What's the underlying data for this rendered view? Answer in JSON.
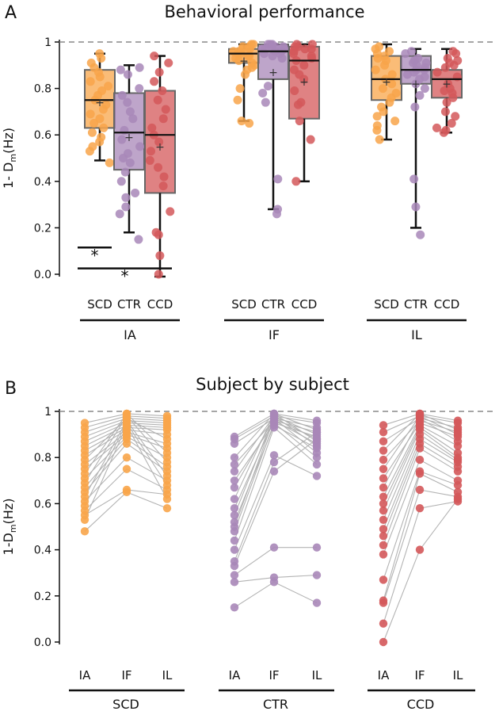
{
  "colors": {
    "SCD": "#F8A54A",
    "CTR": "#A887B8",
    "CCD": "#D4585A",
    "line": "#b3b3b3",
    "ref": "#888888"
  },
  "chart_data": [
    {
      "type": "box",
      "panel_label": "A",
      "title": "Behavioral performance",
      "ylabel": "1- D",
      "ylabel_sub": "m",
      "ylabel_unit": "(Hz)",
      "ylim": [
        0,
        1
      ],
      "yticks": [
        "0.0",
        "0.2",
        "0.4",
        "0.6",
        "0.8",
        "1"
      ],
      "reference_line": 1,
      "group_labels": [
        "IA",
        "IF",
        "IL"
      ],
      "condition_labels": [
        "SCD",
        "CTR",
        "CCD"
      ],
      "boxes": [
        {
          "group": "IA",
          "cond": "SCD",
          "min": 0.49,
          "q1": 0.63,
          "median": 0.75,
          "q3": 0.88,
          "max": 0.95,
          "mean": 0.74
        },
        {
          "group": "IA",
          "cond": "CTR",
          "min": 0.18,
          "q1": 0.45,
          "median": 0.61,
          "q3": 0.78,
          "max": 0.9,
          "mean": 0.59
        },
        {
          "group": "IA",
          "cond": "CCD",
          "min": -0.01,
          "q1": 0.35,
          "median": 0.6,
          "q3": 0.79,
          "max": 0.94,
          "mean": 0.55
        },
        {
          "group": "IF",
          "cond": "SCD",
          "min": 0.66,
          "q1": 0.91,
          "median": 0.95,
          "q3": 0.97,
          "max": 0.99,
          "mean": 0.92
        },
        {
          "group": "IF",
          "cond": "CTR",
          "min": 0.28,
          "q1": 0.84,
          "median": 0.96,
          "q3": 0.99,
          "max": 0.99,
          "mean": 0.87
        },
        {
          "group": "IF",
          "cond": "CCD",
          "min": 0.4,
          "q1": 0.67,
          "median": 0.92,
          "q3": 0.98,
          "max": 0.99,
          "mean": 0.83
        },
        {
          "group": "IL",
          "cond": "SCD",
          "min": 0.58,
          "q1": 0.75,
          "median": 0.84,
          "q3": 0.94,
          "max": 0.99,
          "mean": 0.83
        },
        {
          "group": "IL",
          "cond": "CTR",
          "min": 0.2,
          "q1": 0.82,
          "median": 0.88,
          "q3": 0.94,
          "max": 0.97,
          "mean": 0.82
        },
        {
          "group": "IL",
          "cond": "CCD",
          "min": 0.61,
          "q1": 0.76,
          "median": 0.84,
          "q3": 0.88,
          "max": 0.97,
          "mean": 0.82
        }
      ],
      "significance": [
        {
          "from": "SCD",
          "to": "CTR",
          "group": "IA",
          "label": "*",
          "y": 0.115
        },
        {
          "from": "SCD",
          "to": "CCD",
          "group": "IA",
          "label": "*",
          "y": 0.025
        }
      ]
    },
    {
      "type": "paired-line",
      "panel_label": "B",
      "title": "Subject by subject",
      "ylabel": "1-D",
      "ylabel_sub": "m",
      "ylabel_unit": "(Hz)",
      "ylim": [
        0,
        1
      ],
      "yticks": [
        "0.0",
        "0.2",
        "0.4",
        "0.6",
        "0.8",
        "1"
      ],
      "reference_line": 1,
      "groups": [
        {
          "name": "SCD",
          "conditions": [
            "IA",
            "IF",
            "IL"
          ],
          "subjects": [
            [
              0.95,
              0.99,
              0.98
            ],
            [
              0.93,
              0.98,
              0.97
            ],
            [
              0.91,
              0.97,
              0.96
            ],
            [
              0.89,
              0.96,
              0.95
            ],
            [
              0.87,
              0.95,
              0.94
            ],
            [
              0.85,
              0.94,
              0.93
            ],
            [
              0.83,
              0.93,
              0.92
            ],
            [
              0.81,
              0.92,
              0.9
            ],
            [
              0.79,
              0.97,
              0.88
            ],
            [
              0.77,
              0.91,
              0.86
            ],
            [
              0.75,
              0.9,
              0.84
            ],
            [
              0.73,
              0.99,
              0.82
            ],
            [
              0.71,
              0.89,
              0.8
            ],
            [
              0.69,
              0.98,
              0.78
            ],
            [
              0.67,
              0.88,
              0.76
            ],
            [
              0.65,
              0.86,
              0.74
            ],
            [
              0.63,
              0.96,
              0.72
            ],
            [
              0.61,
              0.8,
              0.7
            ],
            [
              0.59,
              0.95,
              0.68
            ],
            [
              0.57,
              0.75,
              0.66
            ],
            [
              0.55,
              0.66,
              0.64
            ],
            [
              0.53,
              0.94,
              0.62
            ],
            [
              0.48,
              0.65,
              0.58
            ]
          ]
        },
        {
          "name": "CTR",
          "conditions": [
            "IA",
            "IF",
            "IL"
          ],
          "subjects": [
            [
              0.89,
              0.99,
              0.96
            ],
            [
              0.88,
              0.98,
              0.95
            ],
            [
              0.86,
              0.97,
              0.93
            ],
            [
              0.8,
              0.99,
              0.92
            ],
            [
              0.77,
              0.96,
              0.91
            ],
            [
              0.74,
              0.98,
              0.9
            ],
            [
              0.7,
              0.95,
              0.89
            ],
            [
              0.67,
              0.97,
              0.88
            ],
            [
              0.62,
              0.99,
              0.87
            ],
            [
              0.58,
              0.96,
              0.86
            ],
            [
              0.55,
              0.98,
              0.85
            ],
            [
              0.52,
              0.94,
              0.84
            ],
            [
              0.5,
              0.97,
              0.82
            ],
            [
              0.48,
              0.95,
              0.8
            ],
            [
              0.44,
              0.93,
              0.77
            ],
            [
              0.4,
              0.81,
              0.72
            ],
            [
              0.35,
              0.78,
              0.91
            ],
            [
              0.33,
              0.74,
              0.88
            ],
            [
              0.29,
              0.41,
              0.41
            ],
            [
              0.26,
              0.28,
              0.29
            ],
            [
              0.15,
              0.26,
              0.17
            ]
          ]
        },
        {
          "name": "CCD",
          "conditions": [
            "IA",
            "IF",
            "IL"
          ],
          "subjects": [
            [
              0.94,
              0.99,
              0.96
            ],
            [
              0.91,
              0.98,
              0.95
            ],
            [
              0.87,
              0.97,
              0.93
            ],
            [
              0.83,
              0.99,
              0.92
            ],
            [
              0.79,
              0.96,
              0.91
            ],
            [
              0.75,
              0.98,
              0.9
            ],
            [
              0.71,
              0.95,
              0.89
            ],
            [
              0.67,
              0.97,
              0.87
            ],
            [
              0.63,
              0.94,
              0.85
            ],
            [
              0.6,
              0.93,
              0.82
            ],
            [
              0.57,
              0.92,
              0.8
            ],
            [
              0.53,
              0.9,
              0.79
            ],
            [
              0.49,
              0.88,
              0.78
            ],
            [
              0.46,
              0.86,
              0.76
            ],
            [
              0.42,
              0.84,
              0.74
            ],
            [
              0.38,
              0.79,
              0.7
            ],
            [
              0.27,
              0.74,
              0.68
            ],
            [
              0.18,
              0.73,
              0.65
            ],
            [
              0.17,
              0.66,
              0.63
            ],
            [
              0.08,
              0.58,
              0.61
            ],
            [
              0.0,
              0.4,
              0.62
            ]
          ]
        }
      ]
    }
  ]
}
